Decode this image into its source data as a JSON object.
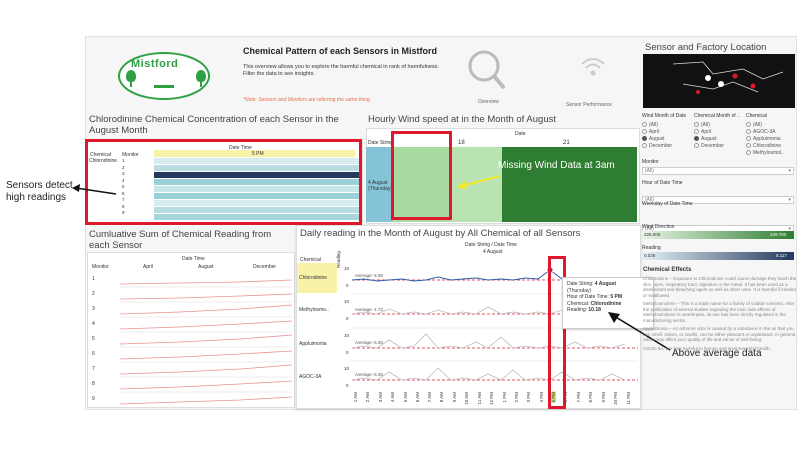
{
  "header": {
    "title": "Chemical Pattern of each Sensors in Mistford",
    "logo_text": "Mistford",
    "description_1": "This overview allows you to explore the harmful chemical in rank of harmfulness.",
    "description_2": "Filter the data to see insights.",
    "note": "*Note: Sensors and Monitors are referring the same thing.",
    "nav_overview": "Overview",
    "nav_sensor_performance": "Sensor Performance"
  },
  "panel_concentration": {
    "title": "Chlorodinine Chemical Concentration of each Sensor in the August Month",
    "col_chemical": "Chemical",
    "col_monitor": "Monitor",
    "col_datetime": "Date Time",
    "time_label": "5 PM",
    "chemical": "Chlorodinine",
    "monitors": [
      "1",
      "2",
      "3",
      "4",
      "5",
      "6",
      "7",
      "8",
      "9"
    ]
  },
  "panel_wind": {
    "title": "Hourly Wind speed at in the Month of August",
    "col_date": "Date",
    "col_date_string": "Date String",
    "ticks": [
      "18",
      "21"
    ],
    "row_label_1": "4 August",
    "row_label_2": "(Thursday)",
    "annotation": "Missing Wind Data at 3am"
  },
  "panel_cumulative": {
    "title": "Cumluative Sum of Chemical Reading from each Sensor",
    "col_datetime": "Date Time",
    "col_monitor": "Monitor",
    "months": [
      "April",
      "August",
      "December"
    ],
    "monitors": [
      "1",
      "2",
      "3",
      "4",
      "5",
      "6",
      "7",
      "8",
      "9"
    ]
  },
  "panel_daily": {
    "title": "Daily reading in the Month of August by All Chemical of all Sensors",
    "col_header": "Date String / Date Time",
    "date": "4 August",
    "col_chemical": "Chemical",
    "reading_axis": "Reading",
    "chemicals": [
      {
        "name": "Chlorodinine",
        "average": "Average: 5.08",
        "tick_top": "10",
        "tick_bottom": "0"
      },
      {
        "name": "Methylosmo..",
        "average": "Average: 4.72",
        "tick_top": "10",
        "tick_bottom": "0"
      },
      {
        "name": "Appluimonia",
        "average": "Average: 5.00",
        "tick_top": "10",
        "tick_bottom": "0"
      },
      {
        "name": "AGOC-3A",
        "average": "Average: 5.39",
        "tick_top": "10",
        "tick_bottom": "0"
      }
    ],
    "hours": [
      "1 AM",
      "2 AM",
      "3 AM",
      "4 AM",
      "5 AM",
      "6 AM",
      "7 AM",
      "8 AM",
      "9 AM",
      "10 AM",
      "11 AM",
      "12 PM",
      "1 PM",
      "2 PM",
      "3 PM",
      "4 PM",
      "5 PM",
      "6 PM",
      "7 PM",
      "8 PM",
      "9 PM",
      "10 PM",
      "11 PM"
    ]
  },
  "tooltip": {
    "date_label": "Date String:",
    "date_value": "4 August",
    "weekday": "(Thursday)",
    "hour_label": "Hour of Date Time:",
    "hour_value": "5 PM",
    "chemical_label": "Chemical:",
    "chemical_value": "Chlorodinine",
    "reading_label": "Reading:",
    "reading_value": "10.18"
  },
  "sidebar": {
    "title": "Sensor and Factory Location",
    "filter_wind_month": "Wind Month of Date",
    "filter_chem_month": "Chemical Month of ..",
    "filter_chemical": "Chemical",
    "wind_months": [
      "(All)",
      "April",
      "August",
      "December"
    ],
    "chem_months": [
      "(All)",
      "April",
      "August",
      "December"
    ],
    "chemicals": [
      "(All)",
      "AGOC-3A",
      "Appluimonia",
      "Chlorodinine",
      "Methylosmol.."
    ],
    "monitor_label": "Monitor",
    "monitor_value": "(All)",
    "hour_label": "Hour of Date Time",
    "hour_value": "(All)",
    "weekday_label": "Weekday of Date Time",
    "weekday_value": "(All)",
    "wind_direction_label": "Wind Direction",
    "wind_min": "225.000",
    "wind_max": "229.700",
    "reading_label": "Reading",
    "reading_min": "0.025",
    "reading_max": "5.117",
    "effects_title": "Chemical Effects",
    "effects_1": "Chlorodinine – Exposure to Chlorodinine could cause damage they touch the skin, eyes, respiratory tract, digestive or the metal. It has been used as a disinfectant and bleaching agent as well as other uses. It is harmful if inhaled or swallowed.",
    "effects_2": "Methylosmolene – This is a trade name for a family of volatile solvents. After the publication of several studies regarding the toxic side effects of Methylosmolene in vertebrates, its use has been strictly regulated in the manufacturing sector.",
    "effects_3": "Appluimonia – An airborne odor is caused by a substance in the air that you can smell. Odors, or smells, can be either pleasant or unpleasant. In general, odors may affect your quality of life and sense of well-being.",
    "effects_4": "AGOC-3A, are less harmful to human and environmental health."
  },
  "callouts": {
    "sensors": "Sensors detect high readings",
    "above_avg": "Above average data"
  },
  "colors": {
    "accent_red": "#e0182d",
    "logo_green": "#2ea043",
    "wind_green": "#a8dba1",
    "wind_dark": "#2e7d32",
    "teal_band": "#9ad0d8",
    "navy_band": "#233a5e",
    "line_blue": "#2a5dab"
  }
}
